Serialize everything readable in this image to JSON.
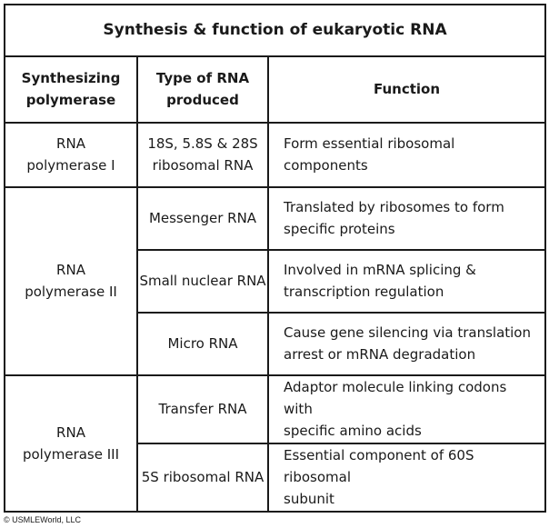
{
  "title": "Synthesis &  function of eukaryotic RNA",
  "headers": {
    "polymerase_line1": "Synthesizing",
    "polymerase_line2": "polymerase",
    "type_line1": "Type of RNA",
    "type_line2": "produced",
    "function": "Function"
  },
  "rows": {
    "pol1": {
      "poly_line1": "RNA",
      "poly_line2": "polymerase I",
      "items": [
        {
          "type_line1": "18S, 5.8S & 28S",
          "type_line2": "ribosomal RNA",
          "func_line1": "Form essential ribosomal components",
          "func_line2": ""
        }
      ]
    },
    "pol2": {
      "poly_line1": "RNA",
      "poly_line2": "polymerase II",
      "items": [
        {
          "type": "Messenger RNA",
          "func_line1": "Translated by ribosomes to form",
          "func_line2": "specific proteins"
        },
        {
          "type": "Small nuclear RNA",
          "func_line1": "Involved in mRNA splicing &",
          "func_line2": "transcription regulation"
        },
        {
          "type": "Micro RNA",
          "func_line1": "Cause gene silencing via translation",
          "func_line2": "arrest or mRNA degradation"
        }
      ]
    },
    "pol3": {
      "poly_line1": "RNA",
      "poly_line2": "polymerase III",
      "items": [
        {
          "type": "Transfer RNA",
          "func_line1": "Adaptor molecule linking codons with",
          "func_line2": "specific amino acids"
        },
        {
          "type": "5S ribosomal RNA",
          "func_line1": "Essential component of 60S ribosomal",
          "func_line2": "subunit"
        }
      ]
    }
  },
  "copyright": "© USMLEWorld, LLC"
}
